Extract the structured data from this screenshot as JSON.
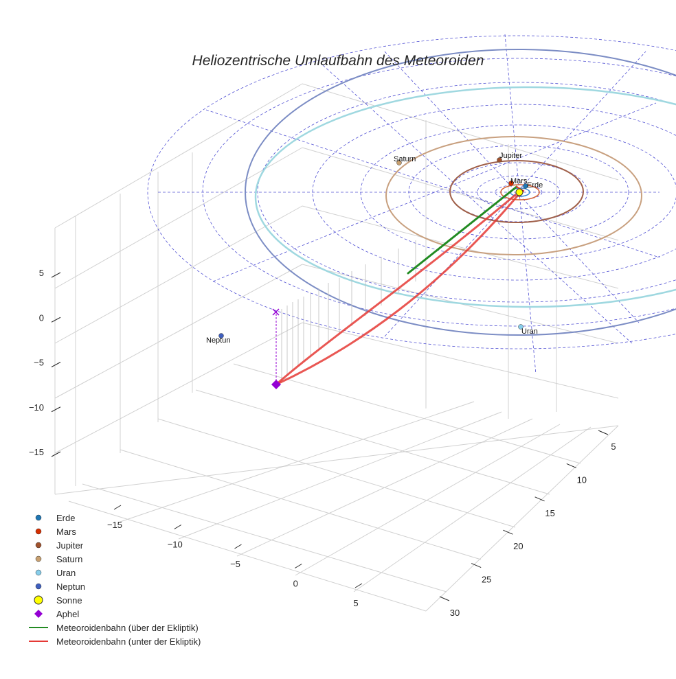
{
  "chart_data": {
    "type": "scatter3d",
    "title": "Heliozentrische Umlaufbahn des Meteoroiden",
    "xlabel": "",
    "ylabel": "",
    "zlabel": "",
    "x_ticks": [
      -15,
      -10,
      -5,
      0,
      5
    ],
    "y_ticks": [
      5,
      10,
      15,
      20,
      25,
      30
    ],
    "z_ticks": [
      5,
      0,
      -5,
      -10,
      -15
    ],
    "xlim": [
      -20,
      8
    ],
    "ylim": [
      2,
      33
    ],
    "zlim": [
      -18,
      9
    ],
    "grid": true,
    "legend_position": "bottom-left",
    "colors": {
      "erde": "#1f77b4",
      "mars": "#d62f00",
      "jupiter": "#a0522d",
      "saturn": "#c8a070",
      "uran": "#87ceeb",
      "neptun": "#3f5fbf",
      "sonne": "#ffff00",
      "aphel": "#9400d3",
      "above": "#228b22",
      "below": "#e53935",
      "ecliptic_grid": "#3333cc"
    },
    "planets": [
      {
        "name": "Erde",
        "label": "Erde"
      },
      {
        "name": "Mars",
        "label": "Mars"
      },
      {
        "name": "Jupiter",
        "label": "Jupiter"
      },
      {
        "name": "Saturn",
        "label": "Saturn"
      },
      {
        "name": "Uran",
        "label": "Uran"
      },
      {
        "name": "Neptun",
        "label": "Neptun"
      }
    ],
    "legend": [
      {
        "label": "Erde",
        "marker": "circle",
        "color": "#1f77b4"
      },
      {
        "label": "Mars",
        "marker": "circle",
        "color": "#d62f00"
      },
      {
        "label": "Jupiter",
        "marker": "circle",
        "color": "#a0522d"
      },
      {
        "label": "Saturn",
        "marker": "circle",
        "color": "#c8a070"
      },
      {
        "label": "Uran",
        "marker": "circle",
        "color": "#87ceeb"
      },
      {
        "label": "Neptun",
        "marker": "circle",
        "color": "#3f5fbf"
      },
      {
        "label": "Sonne",
        "marker": "sun",
        "color": "#ffff00"
      },
      {
        "label": "Aphel",
        "marker": "diamond",
        "color": "#9400d3"
      },
      {
        "label": "Meteoroidenbahn (über der Ekliptik)",
        "marker": "line",
        "color": "#228b22"
      },
      {
        "label": "Meteoroidenbahn (unter der Ekliptik)",
        "marker": "line",
        "color": "#e53935"
      }
    ]
  }
}
